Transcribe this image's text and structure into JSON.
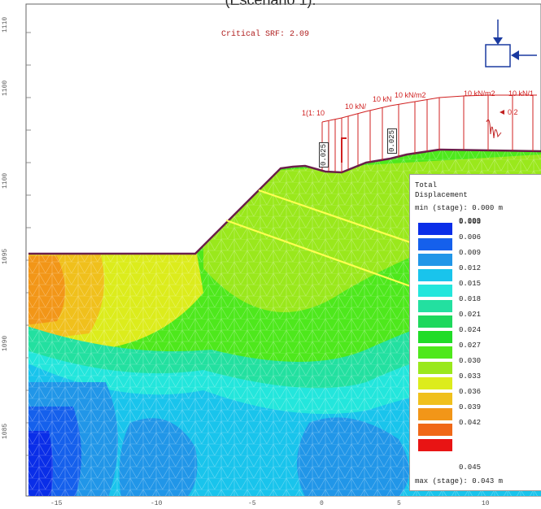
{
  "caption": "(Escenario 1).",
  "critical_srf": "Critical SRF: 2.09",
  "load_labels": [
    "1(1: 10",
    "10 kN/",
    "10 kN",
    "10 kN/m2",
    "10 kN/m2",
    "10 kN/1"
  ],
  "seismic_label": "0.2",
  "annotation_values": [
    "0.025",
    "0.025"
  ],
  "y_axis_ticks": [
    "1110",
    "1100",
    "1100",
    "1095",
    "1090",
    "1085"
  ],
  "x_axis_ticks": [
    "-15",
    "-10",
    "-5",
    "0",
    "5",
    "10"
  ],
  "legend": {
    "title_line1": "Total",
    "title_line2": "Displacement",
    "min_label": "min (stage): 0.000 m",
    "max_label": "max (stage): 0.043 m",
    "top_value": "0.000",
    "bottom_value": "0.045",
    "steps": [
      {
        "value": "0.003",
        "color": "#0a2ee8"
      },
      {
        "value": "0.006",
        "color": "#1560ec"
      },
      {
        "value": "0.009",
        "color": "#2196e8"
      },
      {
        "value": "0.012",
        "color": "#19c4ec"
      },
      {
        "value": "0.015",
        "color": "#23e6dc"
      },
      {
        "value": "0.018",
        "color": "#23e0a0"
      },
      {
        "value": "0.021",
        "color": "#1ed85c"
      },
      {
        "value": "0.024",
        "color": "#20dc28"
      },
      {
        "value": "0.027",
        "color": "#4ee81c"
      },
      {
        "value": "0.030",
        "color": "#9ae81c"
      },
      {
        "value": "0.033",
        "color": "#dcec1c"
      },
      {
        "value": "0.036",
        "color": "#f0c01c"
      },
      {
        "value": "0.039",
        "color": "#f29618"
      },
      {
        "value": "0.042",
        "color": "#f06818"
      },
      {
        "value": "",
        "color": "#e81414"
      }
    ]
  }
}
